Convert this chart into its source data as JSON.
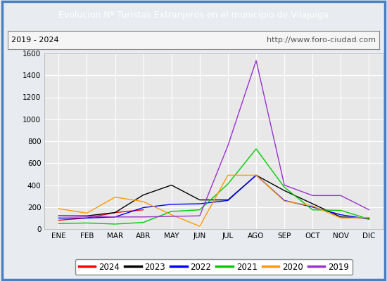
{
  "title": "Evolucion Nº Turistas Extranjeros en el municipio de Vilajuïga",
  "subtitle_left": "2019 - 2024",
  "subtitle_right": "http://www.foro-ciudad.com",
  "title_bg_color": "#4a90d9",
  "title_text_color": "#ffffff",
  "months": [
    "ENE",
    "FEB",
    "MAR",
    "ABR",
    "MAY",
    "JUN",
    "JUL",
    "AGO",
    "SEP",
    "OCT",
    "NOV",
    "DIC"
  ],
  "ylim": [
    0,
    1600
  ],
  "yticks": [
    0,
    200,
    400,
    600,
    800,
    1000,
    1200,
    1400,
    1600
  ],
  "series": {
    "2024": {
      "color": "#ff0000",
      "data": [
        80,
        100,
        150,
        175,
        null,
        null,
        null,
        null,
        null,
        null,
        null,
        null
      ]
    },
    "2023": {
      "color": "#000000",
      "data": [
        120,
        120,
        150,
        310,
        400,
        265,
        265,
        490,
        350,
        230,
        110,
        100
      ]
    },
    "2022": {
      "color": "#0000ff",
      "data": [
        100,
        100,
        110,
        195,
        225,
        230,
        260,
        490,
        260,
        200,
        130,
        90
      ]
    },
    "2021": {
      "color": "#00cc00",
      "data": [
        50,
        55,
        45,
        60,
        160,
        175,
        410,
        730,
        380,
        175,
        170,
        90
      ]
    },
    "2020": {
      "color": "#ff9900",
      "data": [
        185,
        145,
        290,
        250,
        130,
        25,
        490,
        490,
        255,
        210,
        100,
        105
      ]
    },
    "2019": {
      "color": "#9933cc",
      "data": [
        120,
        115,
        110,
        110,
        115,
        120,
        760,
        1535,
        400,
        305,
        305,
        175
      ]
    }
  },
  "legend_order": [
    "2024",
    "2023",
    "2022",
    "2021",
    "2020",
    "2019"
  ],
  "outer_bg_color": "#d0d8e8",
  "inner_bg_color": "#e8ecf0",
  "plot_bg_color": "#e8e8e8",
  "grid_color": "#ffffff",
  "border_color": "#4a7fc0",
  "subtitle_box_color": "#f5f5f5",
  "subtitle_border_color": "#888888"
}
